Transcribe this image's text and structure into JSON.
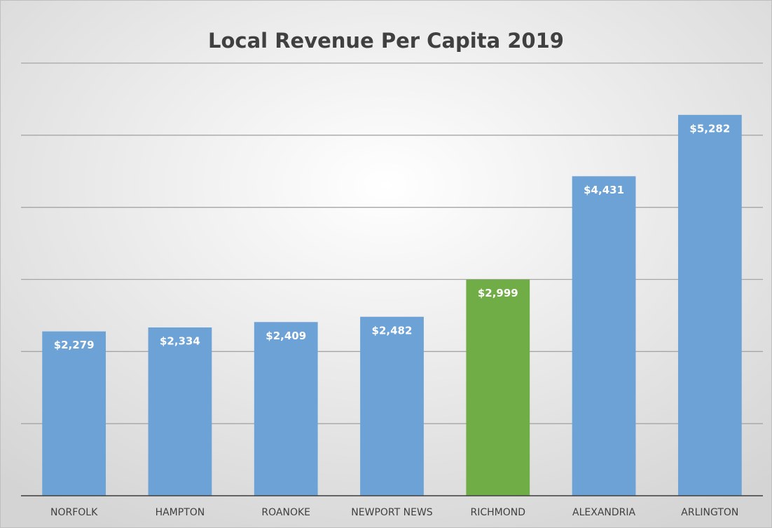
{
  "chart_data": {
    "type": "bar",
    "title": "Local Revenue Per Capita 2019",
    "categories": [
      "NORFOLK",
      "HAMPTON",
      "ROANOKE",
      "NEWPORT NEWS",
      "RICHMOND",
      "ALEXANDRIA",
      "ARLINGTON"
    ],
    "values": [
      2279,
      2334,
      2409,
      2482,
      2999,
      4431,
      5282
    ],
    "value_labels": [
      "$2,279",
      "$2,334",
      "$2,409",
      "$2,482",
      "$2,999",
      "$4,431",
      "$5,282"
    ],
    "colors": [
      "#6ca2d6",
      "#6ca2d6",
      "#6ca2d6",
      "#6ca2d6",
      "#70ad47",
      "#6ca2d6",
      "#6ca2d6"
    ],
    "ylim": [
      0,
      6000
    ],
    "yticks": [
      0,
      1000,
      2000,
      3000,
      4000,
      5000,
      6000
    ],
    "grid": true
  }
}
